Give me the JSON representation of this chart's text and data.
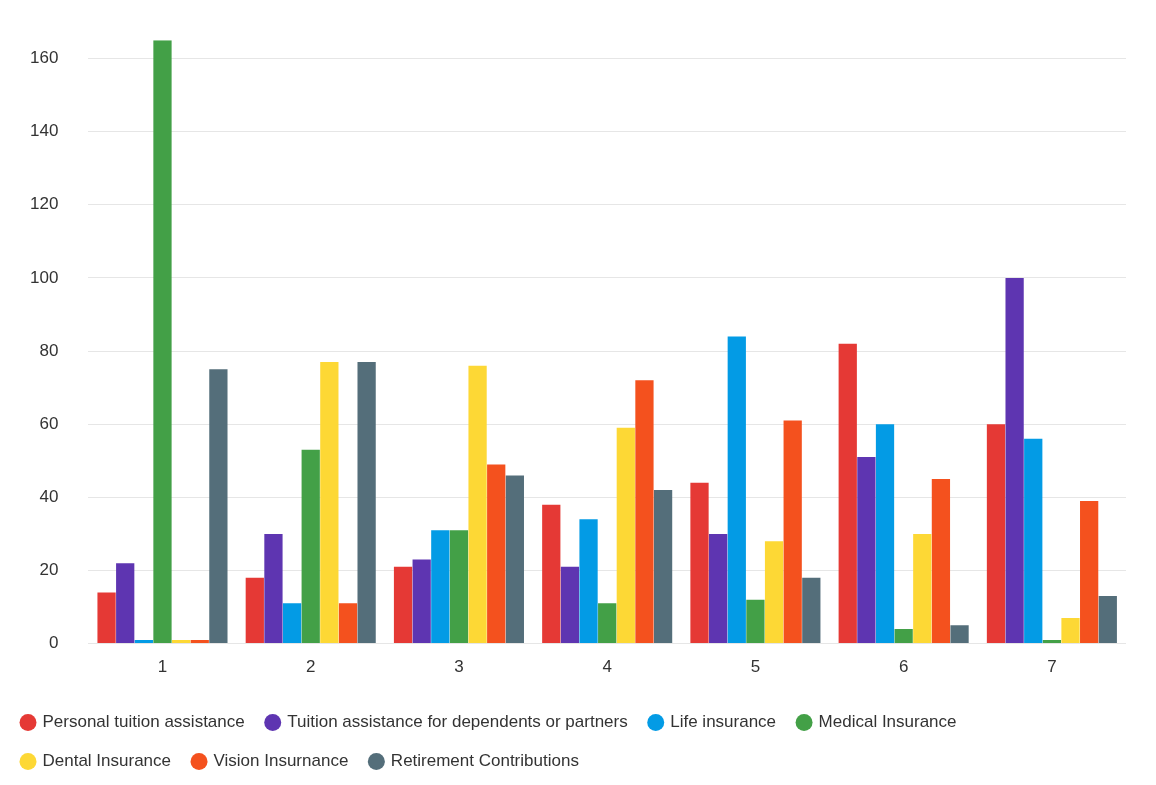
{
  "chart_data": {
    "type": "bar",
    "categories": [
      "1",
      "2",
      "3",
      "4",
      "5",
      "6",
      "7"
    ],
    "series": [
      {
        "name": "Personal tuition assistance",
        "color": "#e53935",
        "values": [
          14,
          18,
          21,
          38,
          44,
          82,
          60
        ]
      },
      {
        "name": "Tuition assistance for dependents or partners",
        "color": "#5e35b1",
        "values": [
          22,
          30,
          23,
          21,
          30,
          51,
          100
        ]
      },
      {
        "name": "Life insurance",
        "color": "#039be5",
        "values": [
          1,
          11,
          31,
          34,
          84,
          60,
          56
        ]
      },
      {
        "name": "Medical Insurance",
        "color": "#43a047",
        "values": [
          165,
          53,
          31,
          11,
          12,
          4,
          1
        ]
      },
      {
        "name": "Dental Insurance",
        "color": "#fdd835",
        "values": [
          1,
          77,
          76,
          59,
          28,
          30,
          7
        ]
      },
      {
        "name": "Vision Insurnance",
        "color": "#f4511e",
        "values": [
          1,
          11,
          49,
          72,
          61,
          45,
          39
        ]
      },
      {
        "name": "Retirement Contributions",
        "color": "#546e7a",
        "values": [
          75,
          77,
          46,
          42,
          18,
          5,
          13
        ]
      }
    ],
    "ylim": [
      0,
      165
    ],
    "yticks": [
      0,
      20,
      40,
      60,
      80,
      100,
      120,
      140,
      160
    ],
    "grid": "y",
    "legend": "bottom"
  }
}
